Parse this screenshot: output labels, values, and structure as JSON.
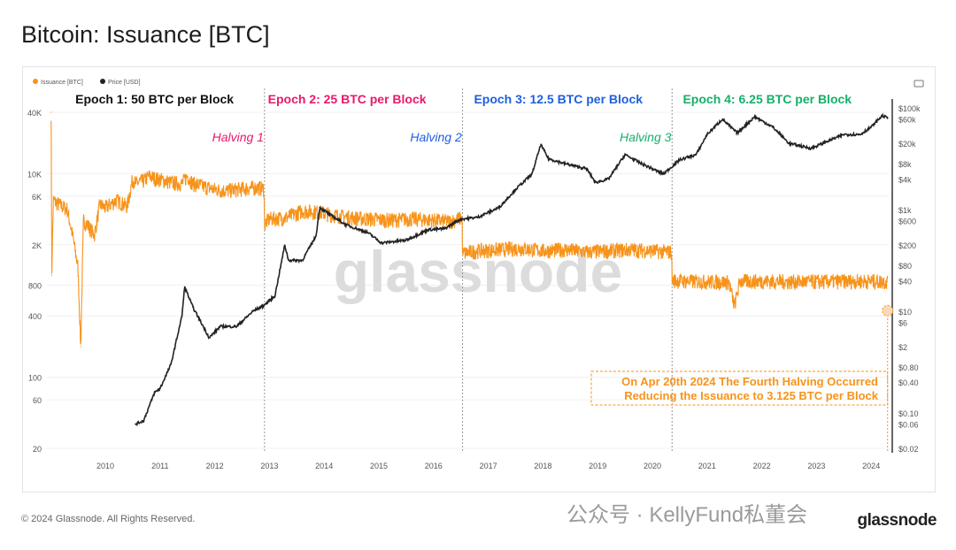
{
  "title": "Bitcoin: Issuance [BTC]",
  "footer": "© 2024 Glassnode. All Rights Reserved.",
  "logo": "glassnode",
  "overlay_watermark": "公众号 · KellyFund私董会",
  "colors": {
    "issuance": "#f7931a",
    "price": "#222222",
    "epoch1": "#111111",
    "epoch2": "#e8196e",
    "epoch3": "#1f5fe0",
    "epoch4": "#16b06a",
    "annotation": "#f7931a"
  },
  "chart_data": {
    "type": "line",
    "watermark": "glassnode",
    "legend": {
      "position": "top-left",
      "items": [
        "Issuance [BTC]",
        "Price [USD]"
      ]
    },
    "x_ticks": [
      "2010",
      "2011",
      "2012",
      "2013",
      "2014",
      "2015",
      "2016",
      "2017",
      "2018",
      "2019",
      "2020",
      "2021",
      "2022",
      "2023",
      "2024"
    ],
    "xlim": [
      2009.0,
      2024.35
    ],
    "y_left": {
      "scale": "log",
      "ylim": [
        20,
        40000
      ],
      "ticks": [
        "20",
        "60",
        "100",
        "400",
        "800",
        "2K",
        "6K",
        "10K",
        "40K"
      ],
      "tick_values": [
        20,
        60,
        100,
        400,
        800,
        2000,
        6000,
        10000,
        40000
      ]
    },
    "y_right": {
      "scale": "log",
      "ylim": [
        0.02,
        100000
      ],
      "ticks": [
        "$0.02",
        "$0.06",
        "$0.10",
        "$0.40",
        "$0.80",
        "$2",
        "$6",
        "$10",
        "$40",
        "$80",
        "$200",
        "$600",
        "$1k",
        "$4k",
        "$8k",
        "$20k",
        "$60k",
        "$100k"
      ],
      "tick_values": [
        0.02,
        0.06,
        0.1,
        0.4,
        0.8,
        2,
        6,
        10,
        40,
        80,
        200,
        600,
        1000,
        4000,
        8000,
        20000,
        60000,
        100000
      ]
    },
    "epochs": [
      {
        "label": "Epoch 1: 50 BTC per Block",
        "x": 2010.9
      },
      {
        "label": "Epoch 2: 25 BTC per Block",
        "x": 2014.5
      },
      {
        "label": "Epoch 3: 12.5 BTC per Block",
        "x": 2018.2
      },
      {
        "label": "Epoch 4: 6.25 BTC per Block",
        "x": 2022.1
      }
    ],
    "halvings": [
      {
        "label": "Halving 1",
        "date": 2012.91
      },
      {
        "label": "Halving 2",
        "date": 2016.53
      },
      {
        "label": "Halving 3",
        "date": 2020.36
      },
      {
        "label": "",
        "date": 2024.3
      }
    ],
    "annotation": {
      "lines": [
        "On Apr 20th 2024 The Fourth Halving Occurred",
        "Reducing the Issuance to 3.125 BTC per Block"
      ],
      "x": 2024.3,
      "y": 450
    },
    "series": [
      {
        "name": "Issuance [BTC]",
        "axis": "left",
        "x": [
          2009.01,
          2009.02,
          2009.05,
          2009.1,
          2009.2,
          2009.3,
          2009.4,
          2009.5,
          2009.55,
          2009.6,
          2009.7,
          2009.8,
          2009.9,
          2010.0,
          2010.2,
          2010.4,
          2010.5,
          2010.55,
          2010.7,
          2010.8,
          2010.9,
          2011.0,
          2011.2,
          2011.4,
          2011.5,
          2011.6,
          2011.8,
          2012.0,
          2012.2,
          2012.4,
          2012.6,
          2012.8,
          2012.9,
          2012.91,
          2013.0,
          2013.3,
          2013.6,
          2013.9,
          2014.2,
          2014.5,
          2014.8,
          2015.2,
          2015.6,
          2016.0,
          2016.3,
          2016.52,
          2016.53,
          2016.8,
          2017.2,
          2017.6,
          2018.0,
          2018.4,
          2018.8,
          2019.2,
          2019.6,
          2020.0,
          2020.35,
          2020.36,
          2020.6,
          2021.0,
          2021.4,
          2021.5,
          2021.6,
          2022.0,
          2022.5,
          2023.0,
          2023.5,
          2024.0,
          2024.3
        ],
        "y": [
          40000,
          1000,
          5500,
          5200,
          4800,
          4500,
          2500,
          1200,
          200,
          3500,
          3000,
          2500,
          5000,
          4600,
          5500,
          4800,
          9000,
          8000,
          8500,
          9500,
          9000,
          8800,
          8200,
          8000,
          9500,
          8000,
          7500,
          7000,
          6800,
          7000,
          7200,
          7300,
          7100,
          3200,
          3600,
          3700,
          4300,
          4200,
          3900,
          3700,
          3600,
          3500,
          3600,
          3500,
          3400,
          3700,
          1650,
          1750,
          1800,
          1850,
          1750,
          1800,
          1700,
          1750,
          1800,
          1750,
          1700,
          900,
          880,
          870,
          860,
          500,
          880,
          880,
          870,
          870,
          880,
          880,
          870
        ]
      },
      {
        "name": "Price [USD]",
        "axis": "right",
        "x": [
          2010.55,
          2010.7,
          2010.9,
          2011.0,
          2011.2,
          2011.4,
          2011.45,
          2011.6,
          2011.9,
          2012.1,
          2012.4,
          2012.7,
          2012.9,
          2013.1,
          2013.28,
          2013.35,
          2013.6,
          2013.85,
          2013.92,
          2014.1,
          2014.4,
          2014.8,
          2015.05,
          2015.5,
          2015.9,
          2016.2,
          2016.5,
          2016.8,
          2017.2,
          2017.5,
          2017.8,
          2017.96,
          2018.1,
          2018.4,
          2018.8,
          2018.96,
          2019.2,
          2019.5,
          2019.8,
          2020.2,
          2020.5,
          2020.8,
          2021.0,
          2021.28,
          2021.55,
          2021.87,
          2022.2,
          2022.5,
          2022.9,
          2023.2,
          2023.5,
          2023.8,
          2024.0,
          2024.2,
          2024.3
        ],
        "y": [
          0.06,
          0.07,
          0.25,
          0.3,
          0.9,
          8,
          30,
          12,
          3,
          5,
          5,
          10,
          13,
          20,
          200,
          100,
          100,
          300,
          1100,
          800,
          500,
          350,
          220,
          250,
          400,
          420,
          650,
          700,
          1100,
          2500,
          5000,
          19000,
          10000,
          8000,
          6300,
          3400,
          4000,
          12000,
          8000,
          5000,
          9500,
          12000,
          30000,
          60000,
          32000,
          67000,
          42000,
          20000,
          16000,
          22000,
          30000,
          30000,
          42000,
          70000,
          64000
        ]
      }
    ]
  }
}
